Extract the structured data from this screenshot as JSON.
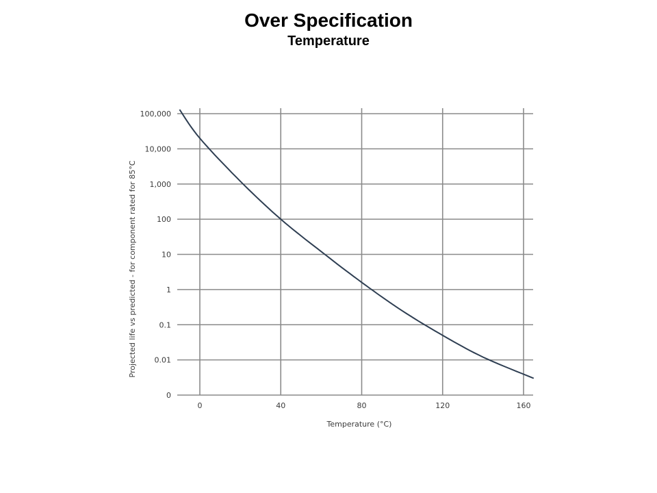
{
  "page": {
    "title": "Over Specification",
    "subtitle": "Temperature"
  },
  "chart_data": {
    "type": "line",
    "title": "",
    "xlabel": "Temperature (°C)",
    "ylabel": "Projected life vs predicted - for component rated for 85°C",
    "y_scale": "log",
    "grid": true,
    "xlim": [
      -11,
      165
    ],
    "x_ticks": [
      0,
      40,
      80,
      120,
      160
    ],
    "x_tick_labels": [
      "0",
      "40",
      "80",
      "120",
      "160"
    ],
    "y_ticks": [
      0.001,
      0.01,
      0.1,
      1,
      10,
      100,
      1000,
      10000,
      100000
    ],
    "y_tick_labels": [
      "0",
      "0.01",
      "0.1",
      "1",
      "10",
      "100",
      "1,000",
      "10,000",
      "100,000"
    ],
    "line_color": "#2e3e52",
    "grid_color": "#8a8a8a",
    "series": [
      {
        "x": [
          -10,
          0,
          20,
          40,
          60,
          80,
          100,
          120,
          140,
          165
        ],
        "y": [
          130000,
          20000,
          1200,
          100,
          12,
          1.6,
          0.25,
          0.05,
          0.012,
          0.003
        ]
      }
    ]
  }
}
